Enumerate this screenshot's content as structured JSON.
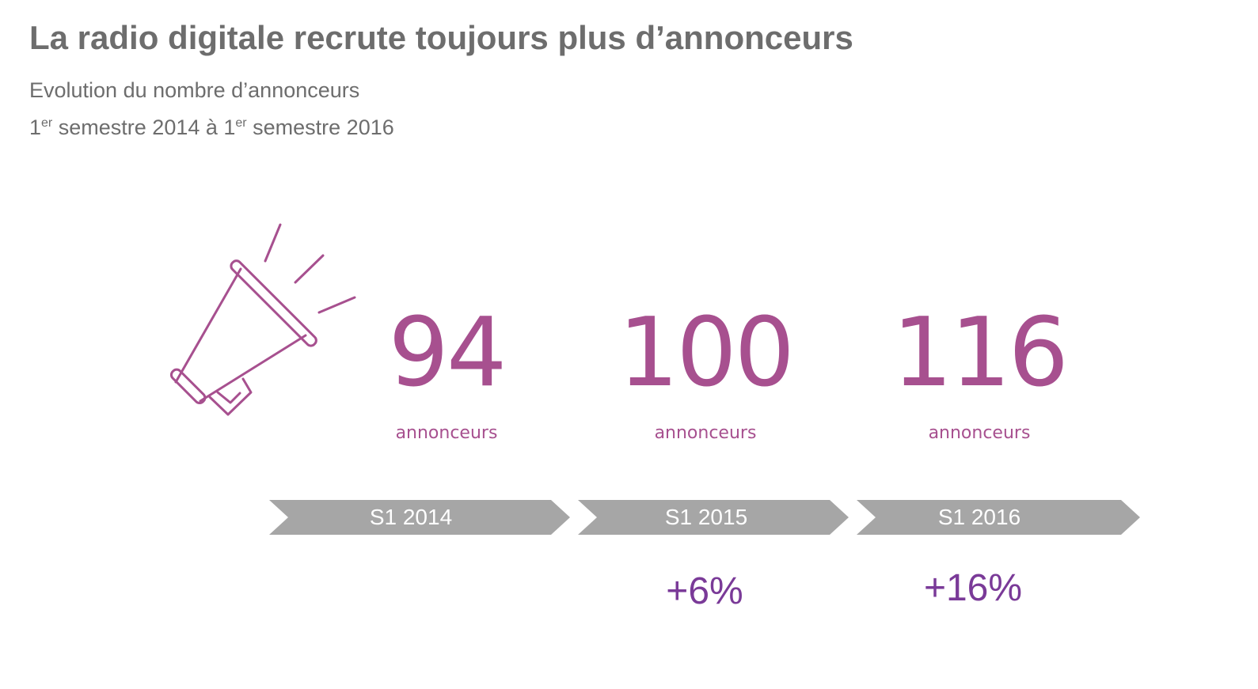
{
  "title": "La radio digitale recrute toujours plus d’annonceurs",
  "subtitle": {
    "line1": "Evolution du nombre d’annonceurs",
    "line2": {
      "part1": "1",
      "sup1": "er",
      "part2": " semestre 2014 à 1",
      "sup2": "er",
      "part3": " semestre 2016"
    }
  },
  "icon": "megaphone-icon",
  "colors": {
    "number": "#a7508f",
    "growth": "#7a3a98",
    "chevron": "#a6a6a6",
    "title": "#6d6d6d"
  },
  "stats": [
    {
      "value": "94",
      "unit": "annonceurs",
      "period": "S1 2014",
      "growth": ""
    },
    {
      "value": "100",
      "unit": "annonceurs",
      "period": "S1 2015",
      "growth": "+6%"
    },
    {
      "value": "116",
      "unit": "annonceurs",
      "period": "S1 2016",
      "growth": "+16%"
    }
  ]
}
